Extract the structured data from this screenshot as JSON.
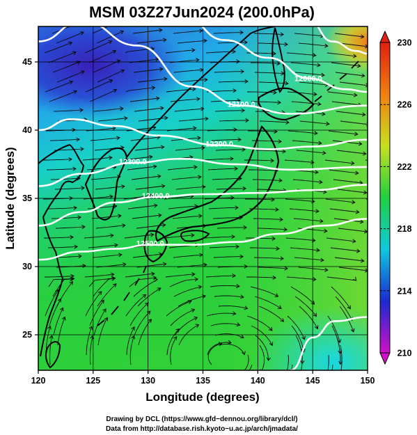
{
  "title": "MSM 03Z27Jun2024 (200.0hPa)",
  "x_axis": {
    "label": "Longitude (degrees)",
    "ticks": [
      {
        "value": 120,
        "label": "120"
      },
      {
        "value": 125,
        "label": "125"
      },
      {
        "value": 130,
        "label": "130"
      },
      {
        "value": 135,
        "label": "135"
      },
      {
        "value": 140,
        "label": "140"
      },
      {
        "value": 145,
        "label": "145"
      },
      {
        "value": 150,
        "label": "150"
      }
    ],
    "range": [
      120,
      150
    ]
  },
  "y_axis": {
    "label": "Latitude  (degrees)",
    "ticks": [
      {
        "value": 25,
        "label": "25"
      },
      {
        "value": 30,
        "label": "30"
      },
      {
        "value": 35,
        "label": "35"
      },
      {
        "value": 40,
        "label": "40"
      },
      {
        "value": 45,
        "label": "45"
      }
    ],
    "range": [
      22.4,
      47.6
    ]
  },
  "colorbar": {
    "min": 210,
    "max": 230,
    "ticks": [
      {
        "value": 210,
        "label": "210"
      },
      {
        "value": 214,
        "label": "214"
      },
      {
        "value": 218,
        "label": "218"
      },
      {
        "value": 222,
        "label": "222"
      },
      {
        "value": 226,
        "label": "226"
      },
      {
        "value": 230,
        "label": "230"
      }
    ],
    "colors": [
      "#d010c8",
      "#1a2bd0",
      "#10c8e0",
      "#20d040",
      "#c8e020",
      "#f08010",
      "#e02010"
    ]
  },
  "contours": [
    {
      "label": "12000.0",
      "lon": 144.6,
      "lat": 43.6
    },
    {
      "label": "12100.0",
      "lon": 138.5,
      "lat": 41.7
    },
    {
      "label": "12200.0",
      "lon": 136.5,
      "lat": 38.8
    },
    {
      "label": "12300.0",
      "lon": 128.6,
      "lat": 37.5
    },
    {
      "label": "12400.0",
      "lon": 130.7,
      "lat": 35.0
    },
    {
      "label": "12500.0",
      "lon": 130.2,
      "lat": 31.5
    }
  ],
  "credits": [
    "Drawing by DCL (https://www.gfd−dennou.org/library/dcl/)",
    "Data from http://database.rish.kyoto−u.ac.jp/arch/jmadata/"
  ]
}
